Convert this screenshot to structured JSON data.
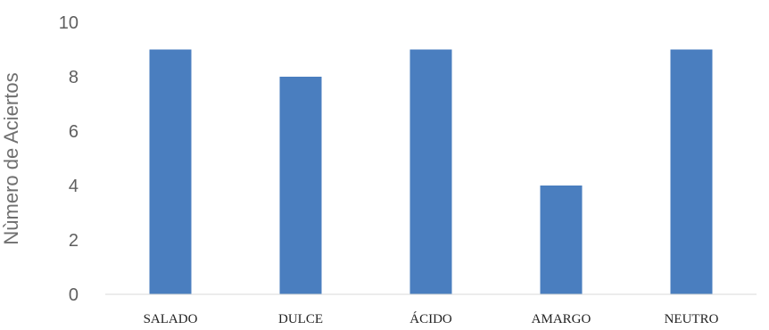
{
  "chart_data": {
    "type": "bar",
    "title": "",
    "xlabel": "",
    "ylabel": "Nùmero de Aciertos",
    "categories": [
      "SALADO",
      "DULCE",
      "ÁCIDO",
      "AMARGO",
      "NEUTRO"
    ],
    "values": [
      9,
      8,
      9,
      4,
      9
    ],
    "ylim": [
      0,
      10
    ],
    "yticks": [
      "0",
      "2",
      "4",
      "6",
      "8",
      "10"
    ],
    "grid": false,
    "legend": "none",
    "colors": {
      "bar": "#4a7ebf",
      "axis": "#d9d9d9"
    }
  }
}
